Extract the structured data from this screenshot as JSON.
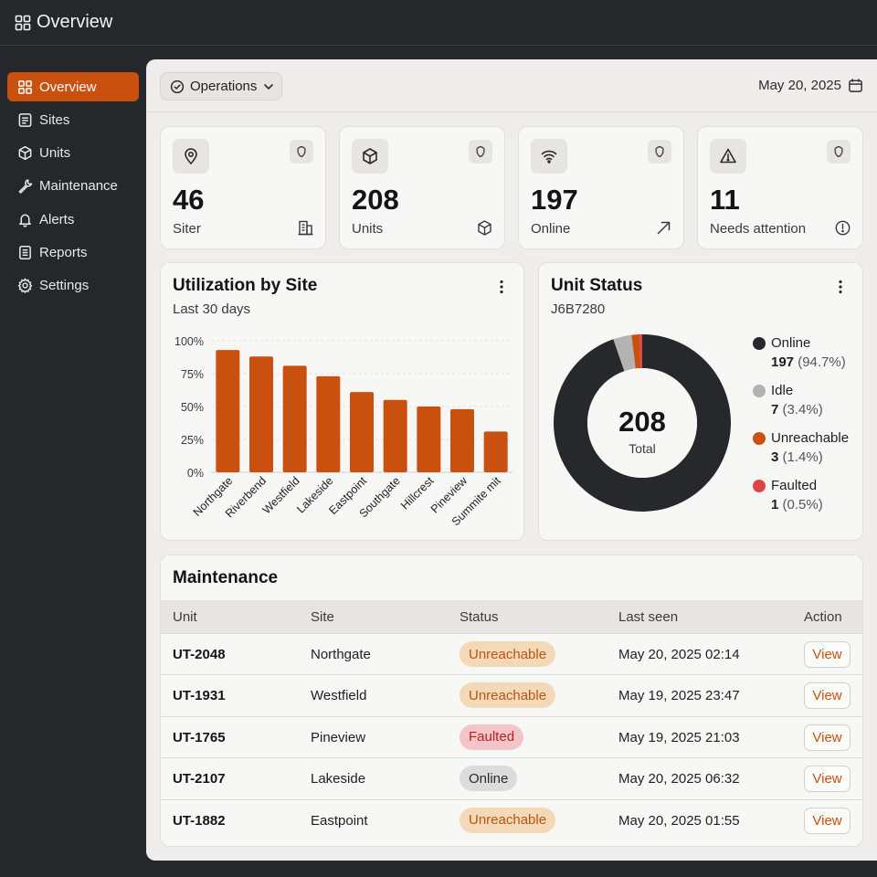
{
  "app": {
    "title": "Overview"
  },
  "sidebar": {
    "items": [
      {
        "label": "Overview",
        "icon": "grid-icon",
        "active": true
      },
      {
        "label": "Sites",
        "icon": "document-icon",
        "active": false
      },
      {
        "label": "Units",
        "icon": "cube-icon",
        "active": false
      },
      {
        "label": "Maintenance",
        "icon": "wrench-icon",
        "active": false
      },
      {
        "label": "Alerts",
        "icon": "bell-icon",
        "active": false
      },
      {
        "label": "Reports",
        "icon": "report-icon",
        "active": false
      },
      {
        "label": "Settings",
        "icon": "gear-icon",
        "active": false
      }
    ]
  },
  "toolbar": {
    "dropdown_label": "Operations",
    "date": "May 20, 2025"
  },
  "stats": [
    {
      "value": "46",
      "label": "Siter",
      "icon": "map-pin-icon",
      "corner_icon": "building-icon"
    },
    {
      "value": "208",
      "label": "Units",
      "icon": "cube-icon",
      "corner_icon": "cube-icon"
    },
    {
      "value": "197",
      "label": "Online",
      "icon": "wifi-icon",
      "corner_icon": "arrow-up-right-icon"
    },
    {
      "value": "11",
      "label": "Needs attention",
      "icon": "warning-icon",
      "corner_icon": "alert-circle-icon"
    }
  ],
  "utilization": {
    "title": "Utilization by Site",
    "subtitle": "Last 30 days"
  },
  "unit_status": {
    "title": "Unit Status",
    "subtitle": "J6B7280",
    "total_value": "208",
    "total_label": "Total",
    "legend": [
      {
        "name": "Online",
        "count": "197",
        "pct": "(94.7%)",
        "color": "#26282c"
      },
      {
        "name": "Idle",
        "count": "7",
        "pct": "(3.4%)",
        "color": "#b3b3b3"
      },
      {
        "name": "Unreachable",
        "count": "3",
        "pct": "(1.4%)",
        "color": "#c9500f"
      },
      {
        "name": "Faulted",
        "count": "1",
        "pct": "(0.5%)",
        "color": "#e04545"
      }
    ]
  },
  "chart_data": [
    {
      "type": "bar",
      "title": "Utilization by Site",
      "subtitle": "Last 30 days",
      "categories": [
        "Northgate",
        "Riverbend",
        "Westfield",
        "Lakeside",
        "Eastpoint",
        "Southgate",
        "Hillcrest",
        "Pineview",
        "Summite mit"
      ],
      "values": [
        93,
        88,
        81,
        73,
        61,
        55,
        50,
        48,
        31
      ],
      "yticks": [
        "0%",
        "25%",
        "50%",
        "75%",
        "100%"
      ],
      "ylim": [
        0,
        100
      ],
      "grid": true,
      "color": "#c9500f"
    },
    {
      "type": "pie",
      "title": "Unit Status",
      "center_value": "208",
      "center_label": "Total",
      "categories": [
        "Online",
        "Idle",
        "Unreachable",
        "Faulted"
      ],
      "values": [
        197,
        7,
        3,
        1
      ],
      "colors": [
        "#26282c",
        "#b3b3b3",
        "#c9500f",
        "#e04545"
      ]
    }
  ],
  "maintenance": {
    "title": "Maintenance",
    "columns": [
      "Unit",
      "Site",
      "Status",
      "Last seen",
      "Action"
    ],
    "rows": [
      {
        "unit": "UT-2048",
        "site": "Northgate",
        "status": "Unreachable",
        "last_seen": "May 20, 2025 02:14",
        "action": "View"
      },
      {
        "unit": "UT-1931",
        "site": "Westfield",
        "status": "Unreachable",
        "last_seen": "May 19, 2025 23:47",
        "action": "View"
      },
      {
        "unit": "UT-1765",
        "site": "Pineview",
        "status": "Faulted",
        "last_seen": "May 19, 2025 21:03",
        "action": "View"
      },
      {
        "unit": "UT-2107",
        "site": "Lakeside",
        "status": "Online",
        "last_seen": "May 20, 2025 06:32",
        "action": "View"
      },
      {
        "unit": "UT-1882",
        "site": "Eastpoint",
        "status": "Unreachable",
        "last_seen": "May 20, 2025 01:55",
        "action": "View"
      }
    ],
    "status_styles": {
      "Unreachable": {
        "bg": "#f3d9b8",
        "fg": "#b9550f"
      },
      "Faulted": {
        "bg": "#f2c6c6",
        "fg": "#b51f1f"
      },
      "Online": {
        "bg": "#dcdcdc",
        "fg": "#2a2a2d"
      }
    }
  }
}
